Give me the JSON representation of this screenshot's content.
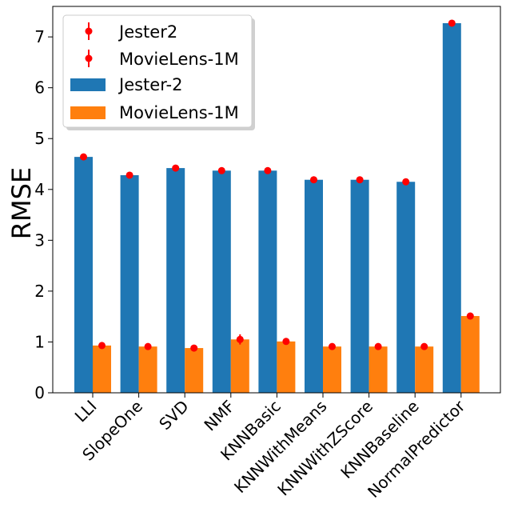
{
  "chart_data": {
    "type": "bar",
    "title": "",
    "xlabel": "",
    "ylabel": "RMSE",
    "ylim": [
      0,
      7.6
    ],
    "yticks": [
      0,
      1,
      2,
      3,
      4,
      5,
      6,
      7
    ],
    "grid": false,
    "legend_position": "top-left",
    "categories": [
      "LLI",
      "SlopeOne",
      "SVD",
      "NMF",
      "KNNBasic",
      "KNNWithMeans",
      "KNNWithZScore",
      "KNNBaseline",
      "NormalPredictor"
    ],
    "series": [
      {
        "name": "Jester-2",
        "color": "#1f77b4",
        "values": [
          4.64,
          4.28,
          4.42,
          4.37,
          4.37,
          4.19,
          4.19,
          4.15,
          7.27
        ]
      },
      {
        "name": "MovieLens-1M",
        "color": "#ff7f0e",
        "values": [
          0.93,
          0.91,
          0.88,
          1.05,
          1.01,
          0.91,
          0.91,
          0.91,
          1.51
        ]
      }
    ],
    "errorbars": [
      {
        "name": "Jester2",
        "color": "#ff0000",
        "values": [
          4.64,
          4.28,
          4.42,
          4.37,
          4.37,
          4.19,
          4.19,
          4.15,
          7.27
        ],
        "errors": [
          0.02,
          0.02,
          0.02,
          0.02,
          0.02,
          0.02,
          0.02,
          0.02,
          0.02
        ]
      },
      {
        "name": "MovieLens-1M",
        "color": "#ff0000",
        "values": [
          0.93,
          0.91,
          0.88,
          1.05,
          1.01,
          0.91,
          0.91,
          0.91,
          1.51
        ],
        "errors": [
          0.02,
          0.02,
          0.02,
          0.1,
          0.02,
          0.02,
          0.02,
          0.02,
          0.02
        ]
      }
    ]
  }
}
